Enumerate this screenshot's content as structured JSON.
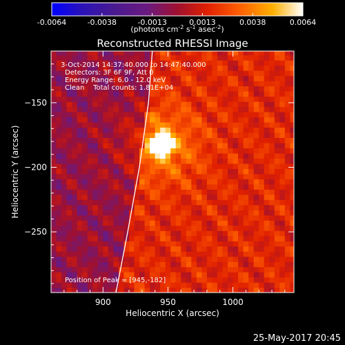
{
  "chart_data": {
    "type": "heatmap",
    "title": "Reconstructed RHESSI Image",
    "xlabel": "Heliocentric X (arcsec)",
    "ylabel": "Heliocentric Y (arcsec)",
    "xlim": [
      860,
      1047
    ],
    "ylim": [
      -297,
      -110
    ],
    "x_ticks": [
      900,
      950,
      1000
    ],
    "y_ticks": [
      -150,
      -200,
      -250
    ],
    "colorbar": {
      "range": [
        -0.0064,
        0.0064
      ],
      "ticks": [
        "-0.0064",
        "-0.0038",
        "-0.0013",
        "0.0013",
        "0.0038",
        "0.0064"
      ],
      "unit_label_parts": [
        "(photons cm",
        "-2",
        " s",
        "-1",
        " asec",
        "-2",
        ")"
      ]
    },
    "annotations": [
      "3-Oct-2014 14:37:40.000 to 14:47:40.000",
      "Detectors: 3F 6F 9F, Att 0",
      "Energy Range: 6.0 - 12.0 keV",
      "Clean    Total counts: 1.81E+04"
    ],
    "peak_label": "Position of Peak = [945,-182]",
    "peak": {
      "x": 945,
      "y": -182,
      "value": 0.0064
    },
    "limb": [
      [
        938,
        -110
      ],
      [
        935,
        -150
      ],
      [
        928,
        -200
      ],
      [
        919,
        -250
      ],
      [
        910,
        -297
      ]
    ],
    "grid": false
  },
  "footer": {
    "timestamp": "25-May-2017 20:45"
  }
}
